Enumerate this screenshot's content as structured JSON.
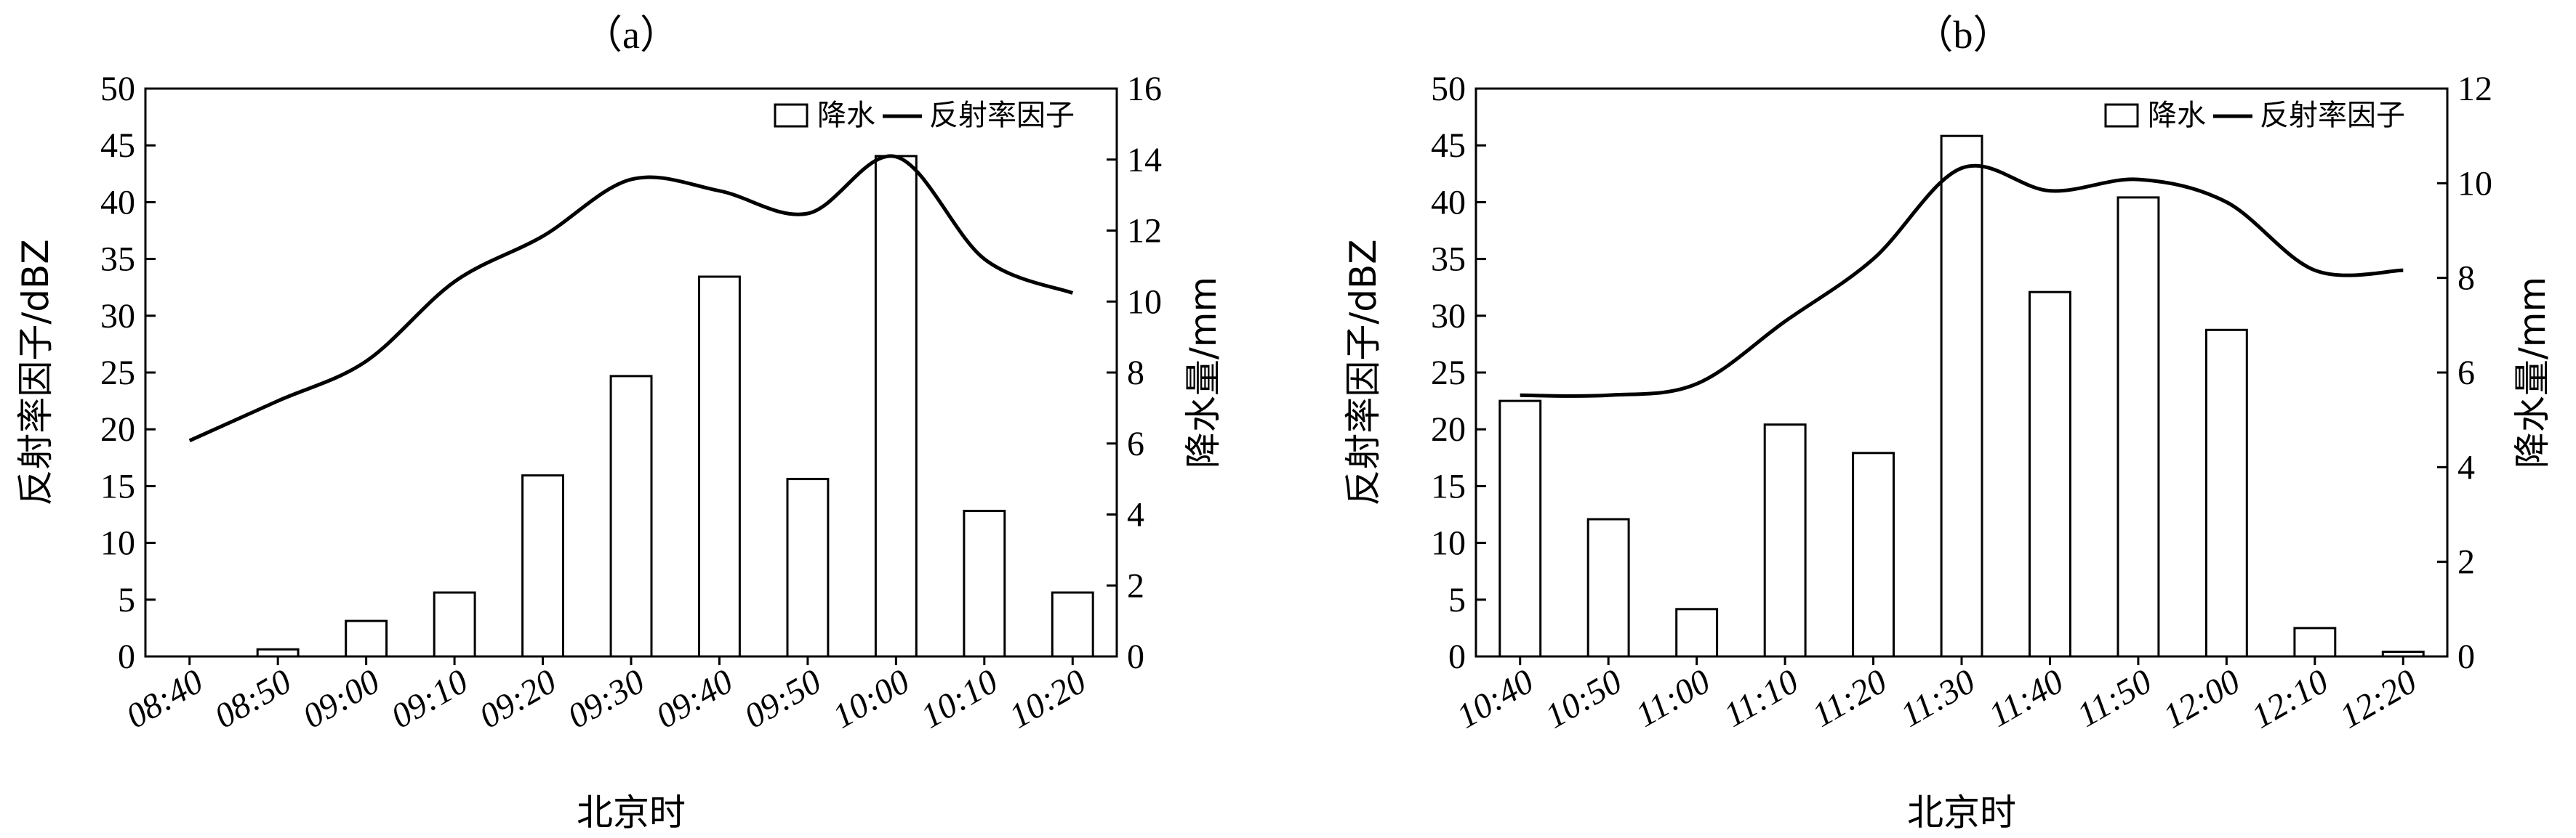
{
  "chart_data": [
    {
      "type": "bar",
      "panel_label": "（a）",
      "xlabel": "北京时",
      "ylabel_left": "反射率因子/dBZ",
      "ylabel_right": "降水量/mm",
      "ylim_left": [
        0,
        50
      ],
      "yticks_left": [
        0,
        5,
        10,
        15,
        20,
        25,
        30,
        35,
        40,
        45,
        50
      ],
      "ylim_right": [
        0,
        16
      ],
      "yticks_right": [
        0,
        2,
        4,
        6,
        8,
        10,
        12,
        14,
        16
      ],
      "categories": [
        "08:40",
        "08:50",
        "09:00",
        "09:10",
        "09:20",
        "09:30",
        "09:40",
        "09:50",
        "10:00",
        "10:10",
        "10:20"
      ],
      "legend": {
        "placement": "top-right",
        "bar_label": "降水",
        "line_label": "反射率因子"
      },
      "series": [
        {
          "name": "降水",
          "kind": "bar",
          "axis": "right",
          "values": [
            0,
            0.2,
            1.0,
            1.8,
            5.1,
            7.9,
            10.7,
            5.0,
            14.1,
            4.1,
            1.8
          ]
        },
        {
          "name": "反射率因子",
          "kind": "line",
          "axis": "left",
          "values": [
            19,
            22.5,
            26,
            33,
            37,
            42,
            41,
            39,
            44,
            35,
            32
          ]
        }
      ]
    },
    {
      "type": "bar",
      "panel_label": "（b）",
      "xlabel": "北京时",
      "ylabel_left": "反射率因子/dBZ",
      "ylabel_right": "降水量/mm",
      "ylim_left": [
        0,
        50
      ],
      "yticks_left": [
        0,
        5,
        10,
        15,
        20,
        25,
        30,
        35,
        40,
        45,
        50
      ],
      "ylim_right": [
        0,
        12
      ],
      "yticks_right": [
        0,
        2,
        4,
        6,
        8,
        10,
        12
      ],
      "categories": [
        "10:40",
        "10:50",
        "11:00",
        "11:10",
        "11:20",
        "11:30",
        "11:40",
        "11:50",
        "12:00",
        "12:10",
        "12:20"
      ],
      "legend": {
        "placement": "top-right",
        "bar_label": "降水",
        "line_label": "反射率因子"
      },
      "series": [
        {
          "name": "降水",
          "kind": "bar",
          "axis": "right",
          "values": [
            5.4,
            2.9,
            1.0,
            4.9,
            4.3,
            11.0,
            7.7,
            9.7,
            6.9,
            0.6,
            0.1
          ]
        },
        {
          "name": "反射率因子",
          "kind": "line",
          "axis": "left",
          "values": [
            23,
            23,
            24,
            29.5,
            35,
            43,
            41,
            42,
            40,
            34,
            34
          ]
        }
      ]
    }
  ]
}
